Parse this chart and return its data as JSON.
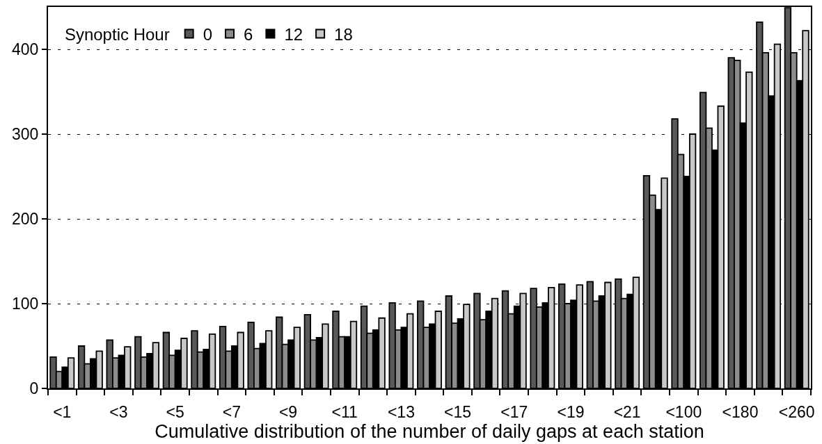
{
  "chart_data": {
    "type": "bar",
    "xlabel": "Cumulative distribution of the number of daily gaps at each station",
    "legend_title": "Synoptic Hour",
    "categories": [
      "<1",
      null,
      "<3",
      null,
      "<5",
      null,
      "<7",
      null,
      "<9",
      null,
      "<11",
      null,
      "<13",
      null,
      "<15",
      null,
      "<17",
      null,
      "<19",
      null,
      "<21",
      null,
      "<100",
      null,
      "<180",
      null,
      "<260"
    ],
    "series": [
      {
        "name": "0",
        "color": "#595959",
        "values": [
          37,
          50,
          57,
          61,
          66,
          68,
          73,
          78,
          84,
          87,
          91,
          97,
          101,
          103,
          109,
          112,
          115,
          118,
          123,
          126,
          129,
          251,
          318,
          349,
          390,
          432,
          449
        ]
      },
      {
        "name": "6",
        "color": "#8c8c8c",
        "values": [
          20,
          29,
          36,
          37,
          39,
          43,
          44,
          47,
          52,
          57,
          61,
          65,
          69,
          72,
          77,
          81,
          88,
          96,
          100,
          103,
          106,
          228,
          276,
          307,
          387,
          396,
          396
        ]
      },
      {
        "name": "12",
        "color": "#000000",
        "values": [
          25,
          35,
          39,
          41,
          45,
          46,
          50,
          53,
          57,
          60,
          61,
          69,
          72,
          76,
          82,
          91,
          97,
          101,
          104,
          109,
          111,
          211,
          250,
          281,
          313,
          345,
          363
        ]
      },
      {
        "name": "18",
        "color": "#c8c8c8",
        "values": [
          36,
          44,
          49,
          54,
          59,
          64,
          66,
          68,
          72,
          76,
          79,
          83,
          88,
          91,
          99,
          106,
          112,
          119,
          122,
          125,
          131,
          248,
          300,
          333,
          373,
          406,
          422
        ]
      }
    ],
    "ylim": [
      0,
      450
    ],
    "yticks": [
      0,
      100,
      200,
      300,
      400
    ],
    "grid": "y",
    "legend": "top left"
  }
}
